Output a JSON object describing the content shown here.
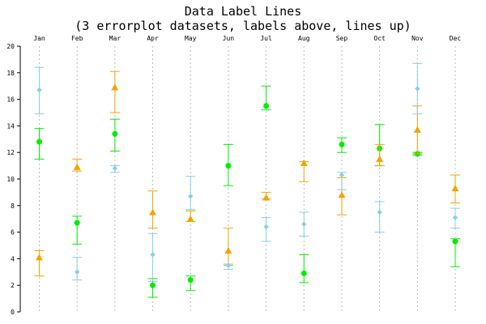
{
  "chart_data": {
    "type": "errorplot",
    "title": [
      "Data Label Lines",
      "(3 errorplot datasets, labels above, lines up)"
    ],
    "xlabel": "",
    "ylabel": "",
    "categories": [
      "Jan",
      "Feb",
      "Mar",
      "Apr",
      "May",
      "Jun",
      "Jul",
      "Aug",
      "Sep",
      "Oct",
      "Nov",
      "Dec"
    ],
    "ylim": [
      0,
      20
    ],
    "yticks": [
      0,
      2,
      4,
      6,
      8,
      10,
      12,
      14,
      16,
      18,
      20
    ],
    "grid": "vertical dotted at categories",
    "category_labels_position": "top",
    "series": [
      {
        "color": "#00ee00",
        "marker": "circle",
        "values": [
          12.8,
          6.7,
          13.4,
          2.0,
          2.4,
          11.0,
          15.5,
          2.9,
          12.6,
          12.3,
          11.9,
          5.3
        ],
        "high": [
          13.8,
          7.2,
          14.5,
          2.5,
          2.7,
          12.6,
          17.0,
          4.3,
          13.1,
          14.1,
          12.0,
          5.5
        ],
        "low": [
          11.5,
          5.1,
          12.1,
          1.1,
          1.6,
          9.5,
          15.2,
          2.2,
          12.0,
          11.0,
          11.8,
          3.4
        ]
      },
      {
        "color": "#f5a300",
        "marker": "triangle",
        "values": [
          4.1,
          10.9,
          16.9,
          7.5,
          7.0,
          4.6,
          8.6,
          11.2,
          8.8,
          11.5,
          13.7,
          9.3
        ],
        "high": [
          4.6,
          11.5,
          18.1,
          9.1,
          7.6,
          6.3,
          9.0,
          11.3,
          10.1,
          12.6,
          15.5,
          10.3
        ],
        "low": [
          2.7,
          10.6,
          15.0,
          6.3,
          6.8,
          3.5,
          8.5,
          9.8,
          7.3,
          11.0,
          11.9,
          8.2
        ]
      },
      {
        "color": "#87ceeb",
        "marker": "diamond",
        "values": [
          16.7,
          3.0,
          10.8,
          4.3,
          8.7,
          3.5,
          6.4,
          6.6,
          10.3,
          7.5,
          16.8,
          7.1
        ],
        "high": [
          18.4,
          4.1,
          11.0,
          5.9,
          10.2,
          3.6,
          7.1,
          7.5,
          10.5,
          8.3,
          18.7,
          7.8
        ],
        "low": [
          14.9,
          2.4,
          10.5,
          2.3,
          7.7,
          3.2,
          5.3,
          5.7,
          9.2,
          6.0,
          14.9,
          6.3
        ]
      }
    ]
  }
}
